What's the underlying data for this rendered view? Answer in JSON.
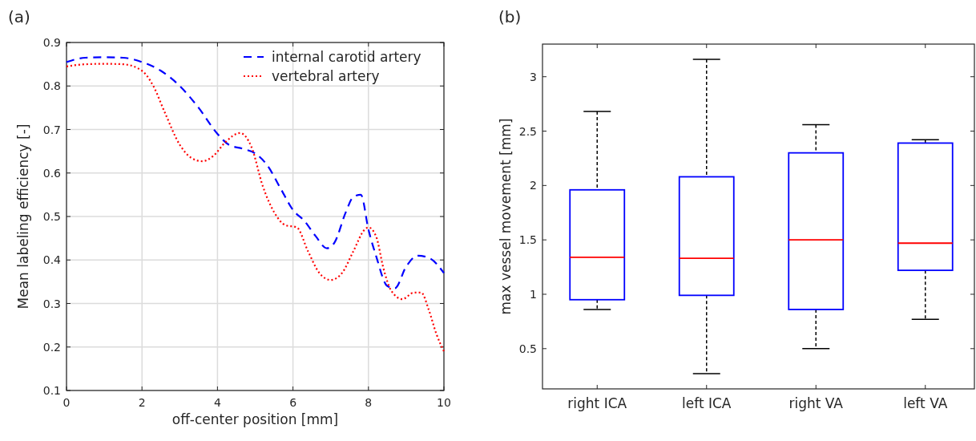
{
  "chart_data": [
    {
      "type": "line",
      "xlabel": "off-center position [mm]",
      "ylabel": "Mean labeling efficiency [-]",
      "annotations": [
        "(a)"
      ],
      "xlim": [
        0,
        10
      ],
      "xticks": [
        0,
        2,
        4,
        6,
        8,
        10
      ],
      "ylim": [
        0.1,
        0.9
      ],
      "yticks": [
        0.1,
        0.2,
        0.3,
        0.4,
        0.5,
        0.6,
        0.7,
        0.8,
        0.9
      ],
      "grid": true,
      "legend": "top right",
      "series": [
        {
          "name": "internal carotid artery",
          "color": "#0000ff",
          "line_style": "dashed",
          "x": [
            0,
            0.5,
            1,
            1.5,
            2,
            2.5,
            3,
            3.5,
            4,
            4.3,
            4.7,
            5,
            5.3,
            5.7,
            6,
            6.3,
            6.6,
            6.9,
            7.1,
            7.4,
            7.6,
            7.8,
            8,
            8.2,
            8.5,
            8.7,
            9,
            9.3,
            9.6,
            10
          ],
          "values": [
            0.855,
            0.865,
            0.866,
            0.865,
            0.855,
            0.835,
            0.8,
            0.75,
            0.69,
            0.665,
            0.655,
            0.645,
            0.62,
            0.56,
            0.515,
            0.49,
            0.455,
            0.427,
            0.44,
            0.51,
            0.545,
            0.55,
            0.47,
            0.41,
            0.34,
            0.335,
            0.385,
            0.41,
            0.405,
            0.37
          ]
        },
        {
          "name": "vertebral artery",
          "color": "#ff0000",
          "line_style": "dotted",
          "x": [
            0,
            0.5,
            1,
            1.5,
            2,
            2.3,
            2.6,
            3,
            3.3,
            3.6,
            3.9,
            4.2,
            4.6,
            4.9,
            5.2,
            5.5,
            5.8,
            6.1,
            6.4,
            6.7,
            7,
            7.3,
            7.6,
            7.9,
            8,
            8.2,
            8.4,
            8.6,
            8.9,
            9.2,
            9.4,
            9.6,
            9.8,
            10
          ],
          "values": [
            0.845,
            0.85,
            0.851,
            0.85,
            0.835,
            0.8,
            0.74,
            0.665,
            0.635,
            0.627,
            0.64,
            0.67,
            0.692,
            0.66,
            0.57,
            0.51,
            0.48,
            0.475,
            0.42,
            0.37,
            0.354,
            0.37,
            0.42,
            0.47,
            0.475,
            0.455,
            0.38,
            0.33,
            0.31,
            0.325,
            0.325,
            0.285,
            0.23,
            0.19
          ]
        }
      ]
    },
    {
      "type": "box",
      "ylabel": "max vessel movement [mm]",
      "annotations": [
        "(b)"
      ],
      "categories": [
        "right ICA",
        "left ICA",
        "right VA",
        "left VA"
      ],
      "ylim": [
        0.13,
        3.3
      ],
      "yticks": [
        0.5,
        1,
        1.5,
        2,
        2.5,
        3
      ],
      "grid": false,
      "series": [
        {
          "color": "#0000ff",
          "boxes": [
            {
              "low": 0.86,
              "q1": 0.95,
              "median": 1.34,
              "q3": 1.96,
              "high": 2.68
            },
            {
              "low": 0.27,
              "q1": 0.99,
              "median": 1.33,
              "q3": 2.08,
              "high": 3.16
            },
            {
              "low": 0.5,
              "q1": 0.86,
              "median": 1.5,
              "q3": 2.3,
              "high": 2.56
            },
            {
              "low": 0.77,
              "q1": 1.22,
              "median": 1.47,
              "q3": 2.39,
              "high": 2.42
            }
          ]
        }
      ]
    }
  ]
}
